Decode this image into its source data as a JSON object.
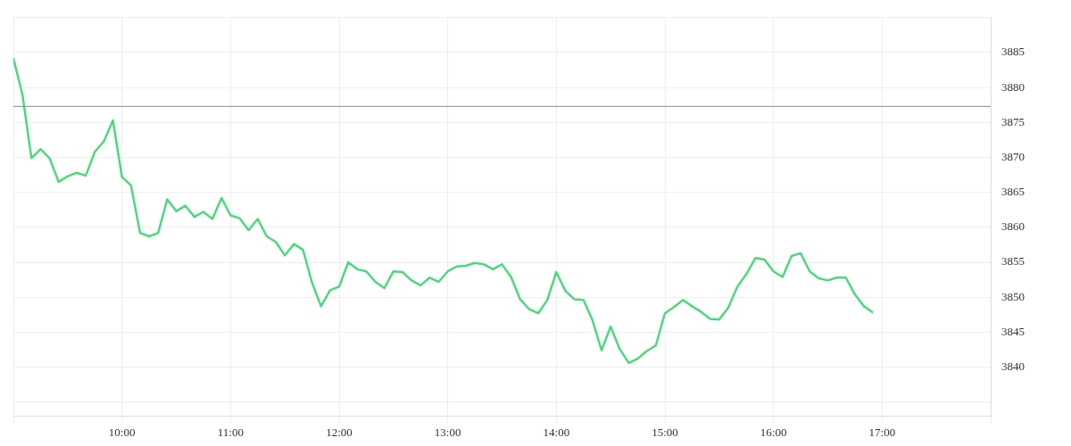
{
  "chart_data": {
    "type": "line",
    "color": "#4cd97b",
    "marker": "none",
    "line_style": "solid",
    "grid": true,
    "x": [
      9,
      9.0833,
      9.1667,
      9.25,
      9.3333,
      9.4167,
      9.5,
      9.5833,
      9.6667,
      9.75,
      9.8333,
      9.9167,
      10,
      10.0833,
      10.1667,
      10.25,
      10.3333,
      10.4167,
      10.5,
      10.5833,
      10.6667,
      10.75,
      10.8333,
      10.9167,
      11,
      11.0833,
      11.1667,
      11.25,
      11.3333,
      11.4167,
      11.5,
      11.5833,
      11.6667,
      11.75,
      11.8333,
      11.9167,
      12,
      12.0833,
      12.1667,
      12.25,
      12.3333,
      12.4167,
      12.5,
      12.5833,
      12.6667,
      12.75,
      12.8333,
      12.9167,
      13,
      13.0833,
      13.1667,
      13.25,
      13.3333,
      13.4167,
      13.5,
      13.5833,
      13.6667,
      13.75,
      13.8333,
      13.9167,
      14,
      14.0833,
      14.1667,
      14.25,
      14.3333,
      14.4167,
      14.5,
      14.5833,
      14.6667,
      14.75,
      14.8333,
      14.9167,
      15,
      15.0833,
      15.1667,
      15.25,
      15.3333,
      15.4167,
      15.5,
      15.5833,
      15.6667,
      15.75,
      15.8333,
      15.9167,
      16,
      16.0833,
      16.1667,
      16.25,
      16.3333,
      16.4167,
      16.5,
      16.5833,
      16.6667,
      16.75,
      16.8333,
      16.9167
    ],
    "values": [
      3884.2,
      3879.0,
      3869.9,
      3871.2,
      3869.9,
      3866.5,
      3867.3,
      3867.8,
      3867.4,
      3870.8,
      3872.3,
      3875.3,
      3867.2,
      3866.0,
      3859.2,
      3858.7,
      3859.2,
      3864.0,
      3862.3,
      3863.1,
      3861.5,
      3862.2,
      3861.2,
      3864.2,
      3861.7,
      3861.3,
      3859.6,
      3861.2,
      3858.7,
      3857.9,
      3856.0,
      3857.6,
      3856.8,
      3852.1,
      3848.7,
      3851.0,
      3851.5,
      3855.0,
      3854.0,
      3853.7,
      3852.2,
      3851.3,
      3853.7,
      3853.6,
      3852.4,
      3851.7,
      3852.8,
      3852.2,
      3853.7,
      3854.4,
      3854.5,
      3854.9,
      3854.7,
      3854.0,
      3854.7,
      3852.9,
      3849.7,
      3848.3,
      3847.7,
      3849.6,
      3853.6,
      3850.9,
      3849.7,
      3849.6,
      3846.7,
      3842.4,
      3845.8,
      3842.6,
      3840.6,
      3841.2,
      3842.3,
      3843.1,
      3847.7,
      3848.6,
      3849.6,
      3848.7,
      3847.9,
      3846.9,
      3846.8,
      3848.5,
      3851.5,
      3853.3,
      3855.6,
      3855.4,
      3853.7,
      3852.9,
      3855.9,
      3856.3,
      3853.7,
      3852.7,
      3852.4,
      3852.8,
      3852.8,
      3850.4,
      3848.7,
      3847.8
    ],
    "xlim": [
      9,
      18
    ],
    "xticks": [
      {
        "value": 9,
        "label": null
      },
      {
        "value": 10,
        "label": "10:00"
      },
      {
        "value": 11,
        "label": "11:00"
      },
      {
        "value": 12,
        "label": "12:00"
      },
      {
        "value": 13,
        "label": "13:00"
      },
      {
        "value": 14,
        "label": "14:00"
      },
      {
        "value": 15,
        "label": "15:00"
      },
      {
        "value": 16,
        "label": "16:00"
      },
      {
        "value": 17,
        "label": "17:00"
      },
      {
        "value": 18,
        "label": null
      }
    ],
    "ylim": [
      3833,
      3890
    ],
    "yticks": [
      {
        "value": 3835,
        "label": null
      },
      3840,
      3845,
      3850,
      3855,
      3860,
      3865,
      3870,
      3875,
      3880,
      3885,
      {
        "value": 3890,
        "label": null
      }
    ],
    "ref_lines": [
      {
        "axis": "y",
        "value": 3877.3,
        "color": "#888888"
      }
    ]
  }
}
